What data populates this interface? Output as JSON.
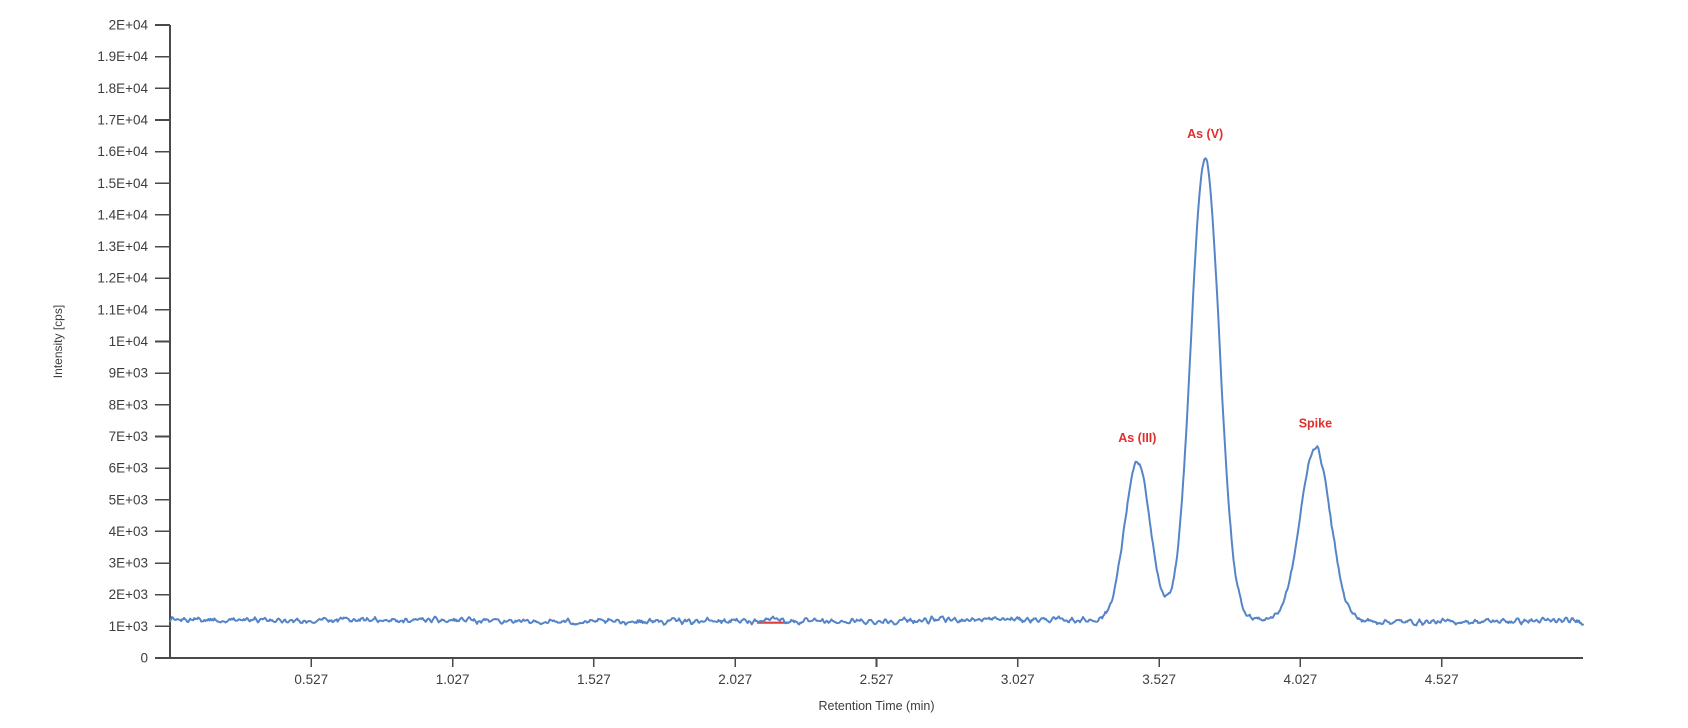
{
  "page": {
    "background": "#ffffff"
  },
  "chart_data": {
    "type": "line",
    "title": "",
    "xlabel": "Retention Time (min)",
    "ylabel": "Intensity [cps]",
    "xlim": [
      0.027,
      5.027
    ],
    "ylim": [
      0,
      20000
    ],
    "grid": false,
    "legend": "none",
    "x_ticks": [
      0.527,
      1.027,
      1.527,
      2.027,
      2.527,
      3.027,
      3.527,
      4.027,
      4.527
    ],
    "x_tick_labels": [
      "0.527",
      "1.027",
      "1.527",
      "2.027",
      "2.527",
      "3.027",
      "3.527",
      "4.027",
      "4.527"
    ],
    "y_tick_step": 1000,
    "y_tick_values": [
      0,
      1000,
      2000,
      3000,
      4000,
      5000,
      6000,
      7000,
      8000,
      9000,
      10000,
      11000,
      12000,
      13000,
      14000,
      15000,
      16000,
      17000,
      18000,
      19000,
      20000
    ],
    "y_tick_labels": [
      "0",
      "1E+03",
      "2E+03",
      "3E+03",
      "4E+03",
      "5E+03",
      "6E+03",
      "7E+03",
      "8E+03",
      "9E+03",
      "1E+04",
      "1.1E+04",
      "1.2E+04",
      "1.3E+04",
      "1.4E+04",
      "1.5E+04",
      "1.6E+04",
      "1.7E+04",
      "1.8E+04",
      "1.9E+04",
      "2E+04"
    ],
    "series": [
      {
        "name": "chromatogram-trace",
        "color": "#5585c8",
        "line_width": 2,
        "baseline_cps": 1180,
        "noise_peak_to_peak_cps": 260,
        "peaks": [
          {
            "label": "As (III)",
            "rt_min": 3.45,
            "apex_cps": 6200,
            "height_above_baseline_cps": 5000,
            "sigma_min": 0.045
          },
          {
            "label": "As (V)",
            "rt_min": 3.69,
            "apex_cps": 15800,
            "height_above_baseline_cps": 14600,
            "sigma_min": 0.05
          },
          {
            "label": "Spike",
            "rt_min": 4.08,
            "apex_cps": 6650,
            "height_above_baseline_cps": 5470,
            "sigma_min": 0.053
          },
          {
            "label": "",
            "rt_min": 2.16,
            "apex_cps": 1290,
            "height_above_baseline_cps": 100,
            "sigma_min": 0.03
          }
        ]
      }
    ],
    "annotations": [
      {
        "name": "red-integration-baseline",
        "type": "segment",
        "t_start_min": 2.104,
        "t_end_min": 2.218,
        "cps": 1115,
        "color": "#e23b3b"
      }
    ],
    "peak_label_style": {
      "color": "#e22e2e",
      "bold": true
    },
    "axis_color": "#4a4a4a",
    "tick_label_color": "#3d3d3d"
  }
}
